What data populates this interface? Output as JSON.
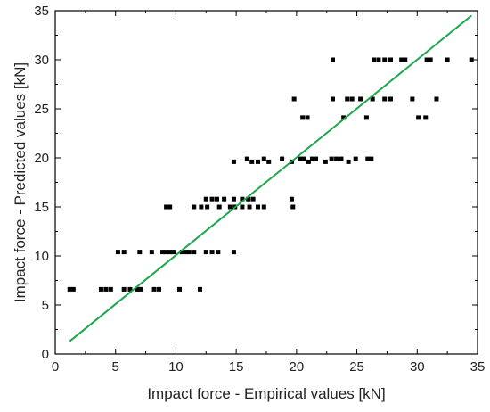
{
  "chart_data": {
    "type": "scatter",
    "title": "",
    "xlabel": "Impact force - Empirical values [kN]",
    "ylabel": "Impact force - Predicted values [kN]",
    "xlim": [
      0,
      35
    ],
    "ylim": [
      0,
      35
    ],
    "xticks": [
      0,
      5,
      10,
      15,
      20,
      25,
      30,
      35
    ],
    "yticks": [
      0,
      5,
      10,
      15,
      20,
      25,
      30,
      35
    ],
    "grid": false,
    "legend": "none",
    "colors": {
      "points": "#000000",
      "fit_line": "#1aa64a",
      "axes": "#000000"
    },
    "points": [
      [
        1.2,
        6.6
      ],
      [
        1.5,
        6.6
      ],
      [
        3.8,
        6.6
      ],
      [
        4.2,
        6.6
      ],
      [
        4.6,
        6.6
      ],
      [
        5.7,
        6.6
      ],
      [
        6.2,
        6.6
      ],
      [
        6.8,
        6.6
      ],
      [
        7.1,
        6.6
      ],
      [
        8.2,
        6.6
      ],
      [
        8.6,
        6.6
      ],
      [
        10.3,
        6.6
      ],
      [
        12.0,
        6.6
      ],
      [
        5.2,
        10.4
      ],
      [
        5.7,
        10.4
      ],
      [
        7.0,
        10.4
      ],
      [
        8.0,
        10.4
      ],
      [
        8.9,
        10.4
      ],
      [
        9.2,
        10.4
      ],
      [
        9.5,
        10.4
      ],
      [
        9.8,
        10.4
      ],
      [
        10.5,
        10.4
      ],
      [
        10.8,
        10.4
      ],
      [
        11.1,
        10.4
      ],
      [
        11.5,
        10.4
      ],
      [
        12.5,
        10.4
      ],
      [
        13.0,
        10.4
      ],
      [
        13.5,
        10.4
      ],
      [
        14.8,
        10.4
      ],
      [
        9.2,
        15.0
      ],
      [
        9.5,
        15.0
      ],
      [
        11.5,
        15.0
      ],
      [
        12.1,
        15.0
      ],
      [
        12.6,
        15.0
      ],
      [
        13.6,
        15.0
      ],
      [
        14.5,
        15.0
      ],
      [
        14.9,
        15.0
      ],
      [
        15.5,
        15.0
      ],
      [
        16.1,
        15.0
      ],
      [
        16.8,
        15.0
      ],
      [
        17.3,
        15.0
      ],
      [
        19.7,
        15.0
      ],
      [
        12.5,
        15.8
      ],
      [
        13.0,
        15.8
      ],
      [
        13.4,
        15.8
      ],
      [
        14.0,
        15.8
      ],
      [
        14.8,
        15.8
      ],
      [
        15.5,
        15.8
      ],
      [
        16.0,
        15.8
      ],
      [
        16.4,
        15.8
      ],
      [
        19.6,
        15.8
      ],
      [
        14.8,
        19.6
      ],
      [
        15.9,
        19.9
      ],
      [
        16.3,
        19.6
      ],
      [
        16.8,
        19.6
      ],
      [
        17.3,
        19.9
      ],
      [
        17.7,
        19.6
      ],
      [
        18.8,
        19.9
      ],
      [
        19.6,
        19.6
      ],
      [
        20.3,
        19.9
      ],
      [
        20.6,
        19.9
      ],
      [
        21.0,
        19.6
      ],
      [
        21.3,
        19.9
      ],
      [
        21.6,
        19.9
      ],
      [
        22.4,
        19.6
      ],
      [
        22.9,
        19.9
      ],
      [
        23.3,
        19.9
      ],
      [
        23.7,
        19.9
      ],
      [
        24.3,
        19.6
      ],
      [
        24.9,
        19.9
      ],
      [
        25.9,
        19.9
      ],
      [
        26.2,
        19.9
      ],
      [
        20.5,
        24.1
      ],
      [
        20.9,
        24.1
      ],
      [
        23.9,
        24.1
      ],
      [
        25.8,
        24.1
      ],
      [
        30.1,
        24.1
      ],
      [
        30.7,
        24.1
      ],
      [
        19.8,
        26.0
      ],
      [
        23.0,
        26.0
      ],
      [
        24.2,
        26.0
      ],
      [
        24.6,
        26.0
      ],
      [
        25.3,
        26.0
      ],
      [
        26.3,
        26.0
      ],
      [
        27.3,
        26.0
      ],
      [
        27.8,
        26.0
      ],
      [
        29.6,
        26.0
      ],
      [
        31.6,
        26.0
      ],
      [
        23.0,
        30.0
      ],
      [
        26.4,
        30.0
      ],
      [
        26.8,
        30.0
      ],
      [
        27.3,
        30.0
      ],
      [
        27.8,
        30.0
      ],
      [
        28.7,
        30.0
      ],
      [
        29.0,
        30.0
      ],
      [
        30.8,
        30.0
      ],
      [
        31.1,
        30.0
      ],
      [
        32.5,
        30.0
      ],
      [
        34.5,
        30.0
      ]
    ],
    "fit_line": {
      "x": [
        1.2,
        34.5
      ],
      "y": [
        1.3,
        34.5
      ]
    }
  }
}
